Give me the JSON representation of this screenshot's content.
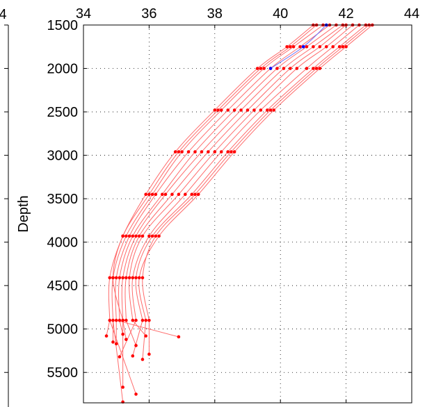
{
  "chart_data": {
    "type": "line",
    "title": "",
    "xlabel": "",
    "ylabel": "Depth",
    "xlim": [
      34,
      44
    ],
    "ylim": [
      1500,
      5850
    ],
    "y_reversed": true,
    "x_axis_position": "top",
    "grid": "dotted",
    "xticks": [
      34,
      36,
      38,
      40,
      42,
      44
    ],
    "yticks": [
      1500,
      2000,
      2500,
      3000,
      3500,
      4000,
      4500,
      5000,
      5500
    ],
    "left_panel_partial_tick_label": "4",
    "colors": {
      "profiles": "#ff6a6a",
      "points": "#ff0000",
      "highlight": "#6f6fff",
      "highlight_points": "#0000ff"
    },
    "depth_levels": [
      1500,
      1750,
      2000,
      2480,
      2960,
      3450,
      3930,
      4410,
      4900
    ],
    "series": [
      {
        "values": [
          41.0,
          40.2,
          39.3,
          38.0,
          36.8,
          35.9,
          35.2,
          34.8,
          34.8
        ]
      },
      {
        "values": [
          41.3,
          40.4,
          39.5,
          38.2,
          37.0,
          36.1,
          35.3,
          34.9,
          34.9
        ]
      },
      {
        "values": [
          41.5,
          40.6,
          39.7,
          38.4,
          37.2,
          36.2,
          35.4,
          35.0,
          35.0
        ]
      },
      {
        "values": [
          41.7,
          40.8,
          39.9,
          38.6,
          37.4,
          36.4,
          35.5,
          35.1,
          35.1
        ]
      },
      {
        "values": [
          41.9,
          41.0,
          40.1,
          38.8,
          37.6,
          36.5,
          35.6,
          35.2,
          35.2
        ]
      },
      {
        "values": [
          42.0,
          41.2,
          40.3,
          39.0,
          37.8,
          36.7,
          35.7,
          35.3,
          35.3
        ]
      },
      {
        "values": [
          42.2,
          41.4,
          40.5,
          39.2,
          38.0,
          36.9,
          35.8,
          35.4,
          35.5
        ]
      },
      {
        "values": [
          42.4,
          41.6,
          40.8,
          39.4,
          38.2,
          37.1,
          36.0,
          35.5,
          35.6
        ]
      },
      {
        "values": [
          42.6,
          41.8,
          41.0,
          39.6,
          38.4,
          37.3,
          36.1,
          35.6,
          35.8
        ]
      },
      {
        "values": [
          42.8,
          42.0,
          41.2,
          39.8,
          38.6,
          37.5,
          36.3,
          35.7,
          35.9
        ]
      },
      {
        "values": [
          42.7,
          41.9,
          41.1,
          39.7,
          38.5,
          37.4,
          36.2,
          35.8,
          36.0
        ]
      },
      {
        "values": [
          41.1,
          40.3,
          39.4,
          38.1,
          36.9,
          36.0,
          35.2,
          34.9,
          35.2
        ]
      }
    ],
    "highlight_series": [
      {
        "values": [
          41.4,
          40.7,
          39.7
        ]
      }
    ],
    "extra_points": [
      {
        "x": 34.7,
        "y": 5080
      },
      {
        "x": 34.9,
        "y": 5150
      },
      {
        "x": 35.0,
        "y": 5170
      },
      {
        "x": 35.2,
        "y": 5060
      },
      {
        "x": 35.3,
        "y": 5120
      },
      {
        "x": 35.6,
        "y": 5190
      },
      {
        "x": 35.9,
        "y": 5080
      },
      {
        "x": 35.1,
        "y": 5320
      },
      {
        "x": 35.5,
        "y": 5310
      },
      {
        "x": 35.8,
        "y": 5350
      },
      {
        "x": 36.0,
        "y": 5290
      },
      {
        "x": 35.2,
        "y": 5670
      },
      {
        "x": 35.6,
        "y": 5750
      },
      {
        "x": 35.2,
        "y": 5840
      },
      {
        "x": 36.9,
        "y": 5090
      }
    ]
  }
}
